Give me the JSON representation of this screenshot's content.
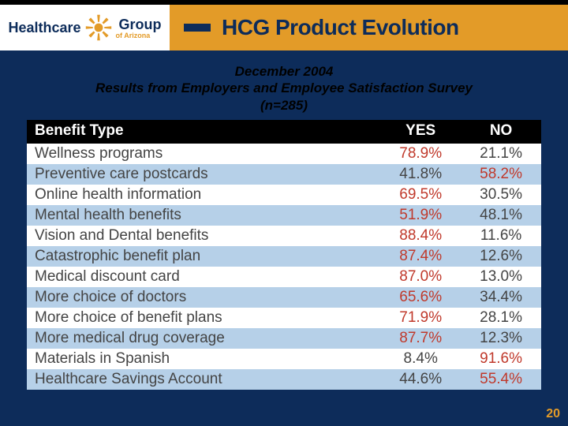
{
  "header": {
    "logo_left": "Healthcare",
    "logo_right": "Group",
    "logo_sub": "of Arizona",
    "page_title": "HCG Product Evolution"
  },
  "subtitle_line1": "December 2004",
  "subtitle_line2": "Results from Employers and Employee Satisfaction Survey",
  "subtitle_line3": "(n=285)",
  "table": {
    "columns": [
      "Benefit Type",
      "YES",
      "NO"
    ],
    "highlight_color": "#c0392b",
    "alt_row_bg": "#b6d0e8",
    "header_bg": "#000000",
    "header_fg": "#ffffff",
    "text_color": "#444444",
    "rows": [
      {
        "label": "Wellness programs",
        "yes": "78.9%",
        "no": "21.1%",
        "hl": "yes",
        "alt": false
      },
      {
        "label": "Preventive care postcards",
        "yes": "41.8%",
        "no": "58.2%",
        "hl": "no",
        "alt": true
      },
      {
        "label": "Online health information",
        "yes": "69.5%",
        "no": "30.5%",
        "hl": "yes",
        "alt": false
      },
      {
        "label": "Mental health benefits",
        "yes": "51.9%",
        "no": "48.1%",
        "hl": "yes",
        "alt": true
      },
      {
        "label": "Vision and Dental benefits",
        "yes": "88.4%",
        "no": "11.6%",
        "hl": "yes",
        "alt": false
      },
      {
        "label": "Catastrophic benefit plan",
        "yes": "87.4%",
        "no": "12.6%",
        "hl": "yes",
        "alt": true
      },
      {
        "label": "Medical discount card",
        "yes": "87.0%",
        "no": "13.0%",
        "hl": "yes",
        "alt": false
      },
      {
        "label": "More choice of doctors",
        "yes": "65.6%",
        "no": "34.4%",
        "hl": "yes",
        "alt": true
      },
      {
        "label": "More choice of benefit plans",
        "yes": "71.9%",
        "no": "28.1%",
        "hl": "yes",
        "alt": false
      },
      {
        "label": "More medical drug coverage",
        "yes": "87.7%",
        "no": "12.3%",
        "hl": "yes",
        "alt": true
      },
      {
        "label": "Materials in Spanish",
        "yes": "8.4%",
        "no": "91.6%",
        "hl": "no",
        "alt": false
      },
      {
        "label": "Healthcare Savings Account",
        "yes": "44.6%",
        "no": "55.4%",
        "hl": "no",
        "alt": true
      }
    ]
  },
  "page_number": "20",
  "colors": {
    "slide_bg": "#0d2c5a",
    "accent": "#e39b28"
  }
}
